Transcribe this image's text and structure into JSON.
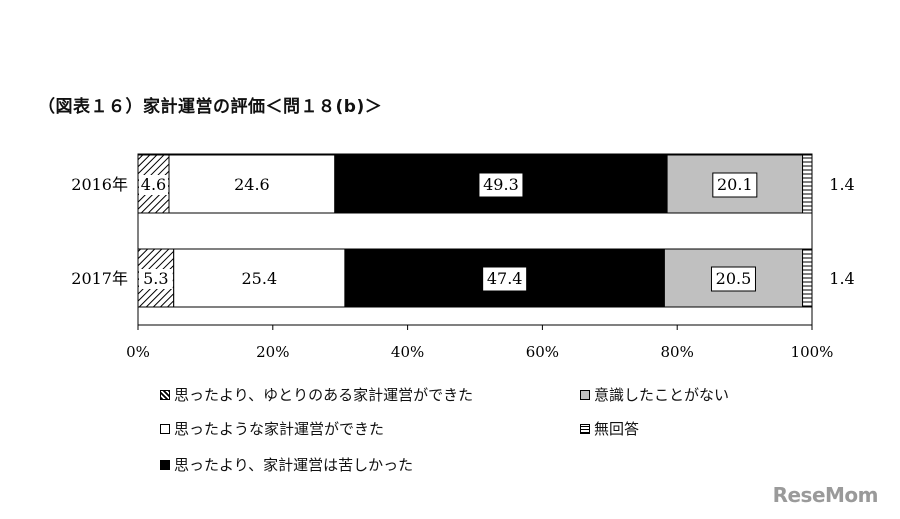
{
  "title": "（図表１６）家計運営の評価＜問１８(b)＞",
  "watermark": "ReseMom",
  "chart_data": {
    "type": "bar",
    "orientation": "horizontal",
    "stacked": true,
    "percent": true,
    "categories": [
      "2016年",
      "2017年"
    ],
    "series": [
      {
        "name": "思ったより、ゆとりのある家計運営ができた",
        "values": [
          4.6,
          5.3
        ],
        "color": "hatched"
      },
      {
        "name": "思ったような家計運営ができた",
        "values": [
          24.6,
          25.4
        ],
        "color": "#ffffff"
      },
      {
        "name": "思ったより、家計運営は苦しかった",
        "values": [
          49.3,
          47.4
        ],
        "color": "#000000"
      },
      {
        "name": "意識したことがない",
        "values": [
          20.1,
          20.5
        ],
        "color": "#c0c0c0"
      },
      {
        "name": "無回答",
        "values": [
          1.4,
          1.4
        ],
        "color": "horizontal-lines"
      }
    ],
    "xlim": [
      0,
      100
    ],
    "xticks": [
      "0%",
      "20%",
      "40%",
      "60%",
      "80%",
      "100%"
    ],
    "grid": false,
    "legend_position": "bottom"
  }
}
